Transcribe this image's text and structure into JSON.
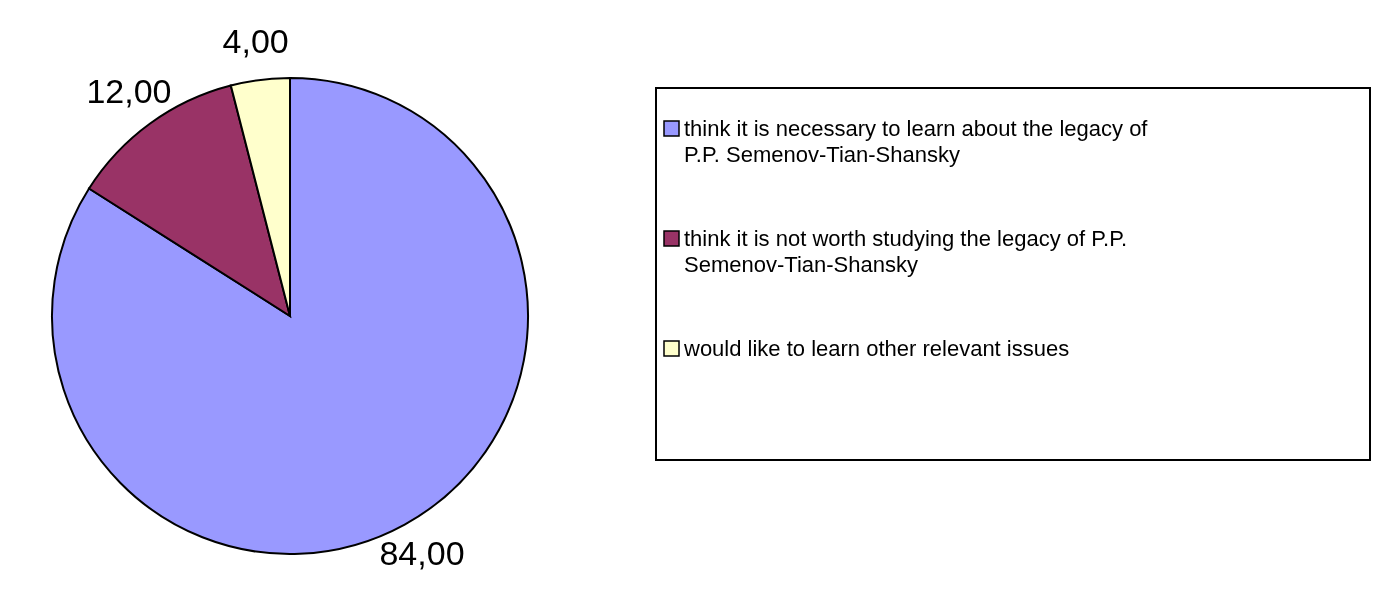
{
  "chart_data": {
    "type": "pie",
    "categories": [
      "think it is necessary to learn about the legacy of P.P. Semenov-Tian-Shansky",
      "think it is not worth studying the legacy of P.P. Semenov-Tian-Shansky",
      "would like to learn other relevant issues"
    ],
    "values": [
      84,
      12,
      4
    ],
    "value_labels": [
      "84,00",
      "12,00",
      "4,00"
    ],
    "colors": [
      "#9999ff",
      "#993366",
      "#ffffcc"
    ],
    "legend": "right"
  }
}
